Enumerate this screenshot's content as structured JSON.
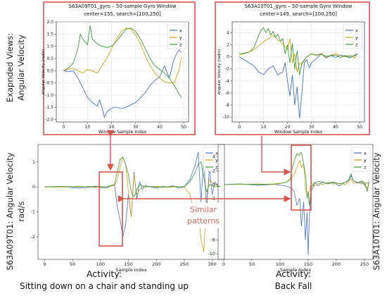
{
  "side_labels": {
    "expanded_line1": "Exapnded Views:",
    "expanded_line2": "Angular Velocity",
    "left_line1": "S63A09T01: Angular Velocity",
    "left_line2": "rad/s",
    "right_line1": "S63A10T01: Angular Velocity"
  },
  "activities": {
    "left_title": "Activity:",
    "left_text": "Sitting down on a chair and standing up",
    "right_title": "Activity:",
    "right_text": "Back Fall"
  },
  "similar_patterns": {
    "line1": "Similar",
    "line2": "patterns"
  },
  "colors": {
    "x": "#4472c4",
    "y": "#d4a017",
    "z": "#3a9a3a",
    "highlight": "#d9534f"
  },
  "chart_data": [
    {
      "id": "zoom_left",
      "type": "line",
      "title": "S63A09T01_gyro – 50-sample Gyro Window",
      "subtitle": "center=155, search=[100,250]",
      "xlabel": "Window Sample Index",
      "ylabel": "Angular Velocity (rad/s)",
      "xlim": [
        -3,
        52
      ],
      "ylim": [
        -2.1,
        2.0
      ],
      "xticks": [
        0,
        10,
        20,
        30,
        40,
        50
      ],
      "yticks": [
        -2.0,
        -1.5,
        -1.0,
        -0.5,
        0.0,
        0.5,
        1.0,
        1.5,
        2.0
      ],
      "ytick_labels": [
        "-2.0",
        "-1.5",
        "-1.0",
        "-0.5",
        "0.0",
        "0.5",
        "1.0",
        "1.5",
        "2.0"
      ],
      "legend": "top-right",
      "series": [
        {
          "name": "x",
          "x": [
            0,
            2,
            4,
            6,
            8,
            10,
            12,
            14,
            15,
            16,
            17,
            18,
            19,
            20,
            21,
            22,
            24,
            26,
            28,
            30,
            32,
            34,
            36,
            38,
            40,
            42,
            44,
            46,
            48,
            49
          ],
          "y": [
            0.0,
            -0.05,
            0.0,
            -0.3,
            -0.7,
            -1.1,
            -1.3,
            -1.45,
            -1.2,
            -1.5,
            -1.9,
            -1.7,
            -1.6,
            -1.55,
            -1.5,
            -1.5,
            -1.55,
            -1.5,
            -1.4,
            -1.3,
            -1.1,
            -0.9,
            -0.6,
            -0.4,
            -0.25,
            0.2,
            -0.3,
            0.5,
            0.85,
            0.75
          ]
        },
        {
          "name": "y",
          "x": [
            0,
            2,
            4,
            6,
            8,
            10,
            12,
            14,
            16,
            18,
            20,
            22,
            24,
            26,
            28,
            30,
            32,
            34,
            36,
            38,
            40,
            42,
            44,
            46,
            48,
            49
          ],
          "y": [
            0.0,
            0.05,
            0.1,
            0.0,
            -0.1,
            0.05,
            0.0,
            -0.1,
            0.2,
            0.5,
            0.9,
            1.3,
            1.6,
            1.75,
            1.7,
            1.45,
            1.1,
            0.6,
            0.2,
            -0.1,
            -0.3,
            -0.45,
            -0.5,
            -0.5,
            0.0,
            0.55
          ]
        },
        {
          "name": "z",
          "x": [
            0,
            2,
            4,
            6,
            7,
            8,
            10,
            11,
            12,
            14,
            16,
            18,
            20,
            22,
            24,
            26,
            28,
            30,
            32,
            34,
            36,
            38,
            40,
            42,
            44,
            46,
            48,
            49
          ],
          "y": [
            0.0,
            0.1,
            0.3,
            0.9,
            1.5,
            1.3,
            1.05,
            1.85,
            1.3,
            1.1,
            1.0,
            0.95,
            1.0,
            1.2,
            1.45,
            1.7,
            1.75,
            1.6,
            1.3,
            0.9,
            0.5,
            0.2,
            0.05,
            -0.1,
            -0.3,
            -0.6,
            -0.95,
            -1.1
          ]
        }
      ]
    },
    {
      "id": "zoom_right",
      "type": "line",
      "title": "S63A10T01_gyro – 50-sample Gyro Window",
      "subtitle": "center=149, search=[100,250]",
      "xlabel": "Window Sample Index",
      "ylabel": "Angular Velocity (rad/s)",
      "xlim": [
        -3,
        52
      ],
      "ylim": [
        -10.8,
        5.8
      ],
      "xticks": [
        0,
        10,
        20,
        30,
        40,
        50
      ],
      "yticks": [
        -10,
        -8,
        -6,
        -4,
        -2,
        0,
        2,
        4
      ],
      "ytick_labels": [
        "-10",
        "-8",
        "-6",
        "-4",
        "-2",
        "0",
        "2",
        "4"
      ],
      "legend": "top-right",
      "series": [
        {
          "name": "x",
          "x": [
            0,
            2,
            4,
            6,
            8,
            10,
            12,
            14,
            16,
            18,
            19,
            20,
            21,
            22,
            23,
            24,
            25,
            26,
            27,
            28,
            29,
            30,
            32,
            34,
            36,
            38,
            40,
            42,
            44,
            46,
            48,
            49
          ],
          "y": [
            0.0,
            -0.5,
            -1.0,
            -1.5,
            -2.5,
            -3.0,
            -2.0,
            -1.5,
            -3.0,
            -2.5,
            -1.0,
            -4.0,
            -6.5,
            -3.0,
            -8.0,
            -5.0,
            -10.2,
            -6.0,
            -1.0,
            -0.5,
            -1.8,
            -1.0,
            -0.3,
            0.5,
            -0.2,
            0.2,
            -0.1,
            0.3,
            0.1,
            -0.2,
            0.3,
            0.5
          ]
        },
        {
          "name": "y",
          "x": [
            0,
            2,
            4,
            6,
            8,
            10,
            12,
            14,
            16,
            18,
            20,
            21,
            22,
            23,
            24,
            25,
            26,
            27,
            28,
            30,
            32,
            34,
            36,
            38,
            40,
            42,
            44,
            46,
            48,
            49
          ],
          "y": [
            0.3,
            0.5,
            0.8,
            1.2,
            1.8,
            2.5,
            3.0,
            3.6,
            2.8,
            2.2,
            1.2,
            3.0,
            -1.0,
            0.5,
            -2.5,
            -1.0,
            -1.2,
            -0.6,
            0.0,
            0.5,
            0.2,
            0.6,
            -0.1,
            0.3,
            0.5,
            0.2,
            0.0,
            0.3,
            -0.2,
            0.5
          ]
        },
        {
          "name": "z",
          "x": [
            0,
            2,
            4,
            6,
            7,
            8,
            9,
            10,
            11,
            12,
            13,
            14,
            15,
            16,
            17,
            18,
            19,
            20,
            21,
            22,
            23,
            24,
            25,
            26,
            28,
            30,
            32,
            34,
            36,
            38,
            40,
            42,
            44,
            46,
            48,
            49
          ],
          "y": [
            0.5,
            0.6,
            0.8,
            1.5,
            2.5,
            3.6,
            4.4,
            4.8,
            4.0,
            4.7,
            3.6,
            4.2,
            3.2,
            3.8,
            2.6,
            3.0,
            0.5,
            2.0,
            -1.0,
            2.2,
            -2.0,
            1.0,
            -3.0,
            -1.0,
            0.0,
            0.5,
            0.3,
            0.4,
            0.1,
            0.2,
            0.3,
            -0.1,
            0.2,
            0.0,
            0.2,
            0.4
          ]
        }
      ]
    },
    {
      "id": "main_left",
      "type": "line",
      "title": "",
      "xlabel": "Sample Index",
      "ylabel": "",
      "xlim": [
        -12,
        322
      ],
      "ylim": [
        -2.9,
        1.7
      ],
      "xticks": [
        0,
        50,
        100,
        150,
        200,
        250,
        300
      ],
      "yticks": [
        -2,
        -1,
        0,
        1
      ],
      "ytick_labels": [
        "-2",
        "-1",
        "0",
        "1"
      ],
      "legend": "top-right",
      "series": [
        {
          "name": "x",
          "x": [
            0,
            30,
            60,
            90,
            110,
            125,
            130,
            135,
            140,
            145,
            150,
            155,
            160,
            165,
            170,
            175,
            180,
            190,
            200,
            210,
            220,
            230,
            240,
            250,
            260,
            270,
            275,
            280,
            285,
            290,
            295,
            300,
            305,
            310,
            315
          ],
          "y": [
            0.0,
            0.02,
            -0.05,
            0.0,
            -0.05,
            0.1,
            -0.8,
            -1.3,
            -2.0,
            -1.5,
            -0.3,
            -1.2,
            0.6,
            -0.5,
            0.2,
            -0.1,
            0.05,
            0.0,
            -0.05,
            0.02,
            0.0,
            0.05,
            -0.05,
            0.0,
            0.3,
            0.9,
            1.4,
            -0.6,
            1.2,
            -1.0,
            0.8,
            -0.3,
            0.2,
            0.05,
            0.0
          ]
        },
        {
          "name": "y",
          "x": [
            0,
            30,
            60,
            90,
            110,
            125,
            130,
            135,
            140,
            145,
            150,
            155,
            160,
            165,
            170,
            175,
            180,
            190,
            200,
            210,
            220,
            230,
            240,
            250,
            260,
            270,
            275,
            280,
            285,
            290,
            295,
            300,
            305,
            310,
            315
          ],
          "y": [
            0.0,
            -0.02,
            0.03,
            -0.02,
            0.0,
            0.05,
            0.3,
            0.8,
            1.2,
            0.9,
            -0.2,
            -1.2,
            0.5,
            -0.3,
            -0.1,
            0.0,
            0.02,
            0.0,
            0.03,
            0.0,
            -0.02,
            0.0,
            0.02,
            0.0,
            -0.3,
            -1.2,
            -0.8,
            -2.1,
            -2.6,
            -0.4,
            0.3,
            0.2,
            0.1,
            0.05,
            0.0
          ]
        },
        {
          "name": "z",
          "x": [
            0,
            30,
            60,
            90,
            110,
            125,
            130,
            135,
            140,
            145,
            150,
            155,
            160,
            165,
            170,
            175,
            180,
            190,
            200,
            210,
            220,
            230,
            240,
            250,
            260,
            270,
            275,
            280,
            285,
            290,
            295,
            300,
            305,
            310,
            315
          ],
          "y": [
            0.0,
            0.02,
            0.0,
            0.03,
            0.0,
            0.1,
            0.6,
            1.1,
            1.2,
            0.9,
            0.5,
            -0.2,
            -0.4,
            -0.1,
            0.1,
            0.05,
            0.0,
            0.02,
            0.0,
            -0.02,
            0.0,
            0.03,
            0.0,
            0.02,
            0.2,
            0.6,
            0.9,
            1.0,
            0.4,
            -0.2,
            0.1,
            0.05,
            0.0,
            0.02,
            0.0
          ]
        }
      ]
    },
    {
      "id": "main_right",
      "type": "line",
      "title": "",
      "xlabel": "Sample Index",
      "ylabel": "",
      "xlim": [
        -10,
        265
      ],
      "ylim": [
        -10.8,
        5.8
      ],
      "xticks": [
        0,
        50,
        100,
        150,
        200,
        250
      ],
      "yticks": [
        -10,
        -8,
        -6,
        -4,
        -2,
        0,
        2,
        4
      ],
      "ytick_labels": [
        "-10",
        "-8",
        "-6",
        "-4",
        "-2",
        "0",
        "2",
        "4"
      ],
      "legend": "top-right",
      "series": [
        {
          "name": "x",
          "x": [
            0,
            30,
            60,
            90,
            110,
            120,
            125,
            130,
            135,
            138,
            142,
            145,
            148,
            150,
            152,
            155,
            158,
            162,
            168,
            175,
            185,
            195,
            205,
            215,
            222,
            226,
            230,
            238,
            245,
            250,
            255,
            258
          ],
          "y": [
            0.0,
            0.1,
            -0.1,
            0.05,
            -0.2,
            -0.5,
            -1.0,
            -3.0,
            -2.0,
            -6.0,
            -2.5,
            -8.0,
            -4.0,
            -10.2,
            -5.0,
            -1.0,
            -0.5,
            0.3,
            -0.2,
            0.4,
            0.1,
            0.3,
            -0.2,
            0.3,
            0.6,
            1.3,
            0.6,
            0.2,
            0.4,
            -0.1,
            0.3,
            0.2
          ]
        },
        {
          "name": "y",
          "x": [
            0,
            30,
            60,
            90,
            110,
            120,
            125,
            130,
            135,
            138,
            142,
            145,
            148,
            152,
            156,
            160,
            168,
            175,
            185,
            195,
            205,
            215,
            222,
            226,
            230,
            238,
            245,
            250,
            255,
            258
          ],
          "y": [
            0.0,
            0.05,
            0.1,
            0.0,
            0.3,
            0.8,
            1.5,
            2.5,
            3.5,
            2.5,
            3.0,
            -0.5,
            -1.5,
            -1.0,
            0.4,
            -0.3,
            0.2,
            0.0,
            0.3,
            0.1,
            0.2,
            0.0,
            0.4,
            0.9,
            0.2,
            0.3,
            0.1,
            0.4,
            -0.6,
            0.2
          ]
        },
        {
          "name": "z",
          "x": [
            0,
            30,
            60,
            90,
            110,
            118,
            122,
            126,
            130,
            134,
            138,
            142,
            146,
            148,
            150,
            152,
            155,
            160,
            168,
            175,
            185,
            195,
            205,
            215,
            222,
            226,
            230,
            238,
            245,
            250,
            255,
            258
          ],
          "y": [
            0.0,
            0.1,
            0.0,
            0.1,
            0.3,
            0.8,
            2.5,
            3.6,
            4.5,
            4.2,
            4.7,
            3.0,
            1.0,
            -2.0,
            -1.0,
            -3.0,
            -0.5,
            0.2,
            0.5,
            0.3,
            0.2,
            0.4,
            0.1,
            0.3,
            0.7,
            1.6,
            0.6,
            0.3,
            0.5,
            0.2,
            -1.0,
            0.4
          ]
        }
      ]
    }
  ]
}
